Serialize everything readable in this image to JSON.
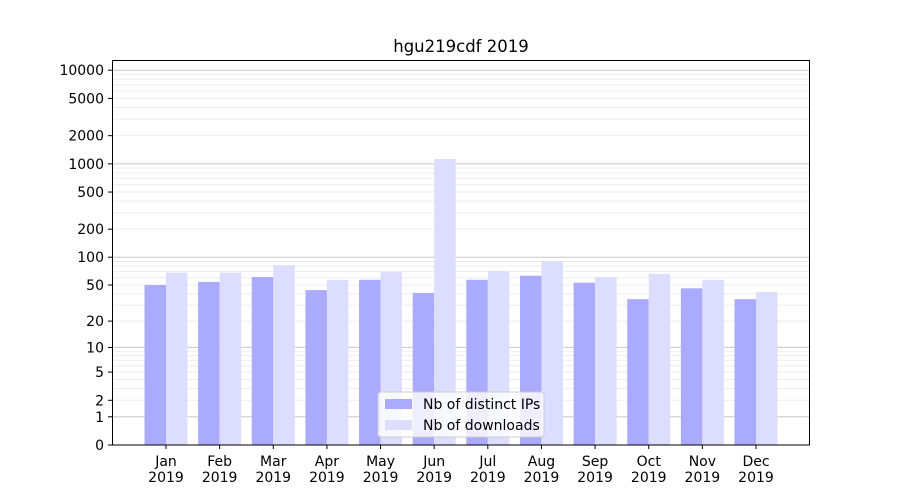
{
  "chart_data": {
    "type": "bar",
    "title": "hgu219cdf 2019",
    "xlabel": "",
    "ylabel": "",
    "yscale": "symlog",
    "ylim": [
      0,
      14000
    ],
    "yticks": [
      0,
      1,
      2,
      5,
      10,
      20,
      50,
      100,
      200,
      500,
      1000,
      2000,
      5000,
      10000
    ],
    "categories": [
      "Jan\n2019",
      "Feb\n2019",
      "Mar\n2019",
      "Apr\n2019",
      "May\n2019",
      "Jun\n2019",
      "Jul\n2019",
      "Aug\n2019",
      "Sep\n2019",
      "Oct\n2019",
      "Nov\n2019",
      "Dec\n2019"
    ],
    "series": [
      {
        "name": "Nb of distinct IPs",
        "color": "#aaaaff",
        "values": [
          50,
          54,
          61,
          44,
          57,
          41,
          57,
          63,
          53,
          35,
          46,
          35
        ]
      },
      {
        "name": "Nb of downloads",
        "color": "#ddddff",
        "values": [
          68,
          68,
          82,
          57,
          69,
          1127,
          71,
          91,
          61,
          66,
          57,
          42
        ]
      }
    ],
    "grid": true,
    "legend": "bottom-center"
  }
}
